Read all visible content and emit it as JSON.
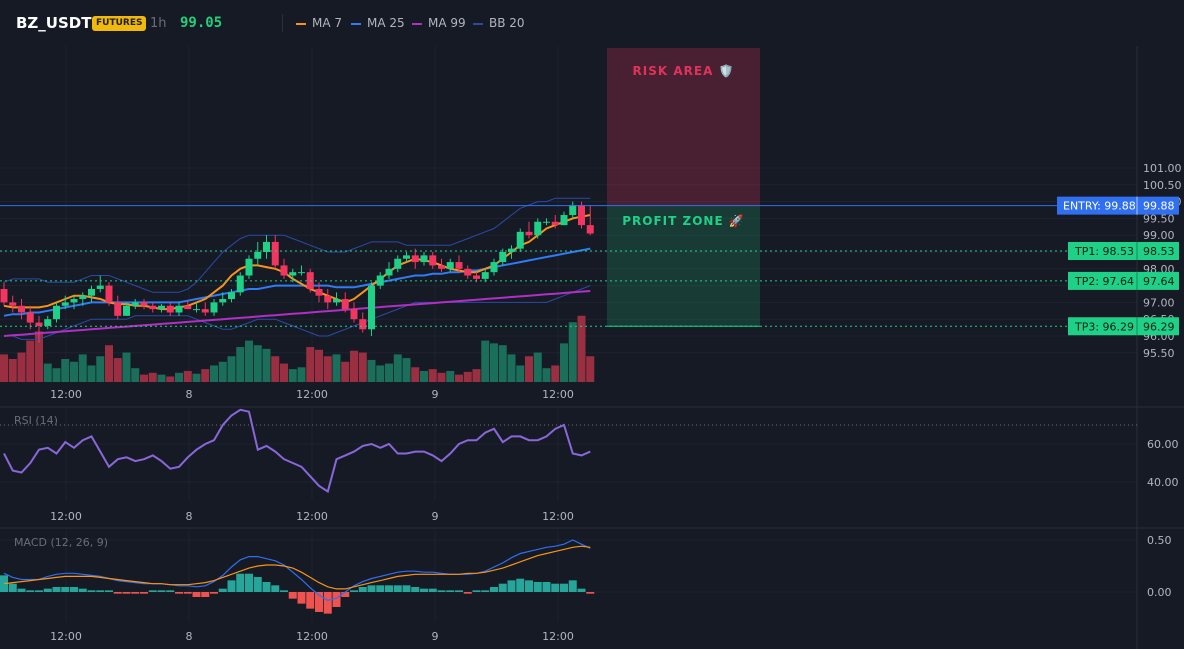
{
  "header": {
    "symbol": "BZ_USDT",
    "badge": "FUTURES",
    "timeframe": "1h",
    "price": "99.05",
    "legend": [
      {
        "label": "MA 7",
        "color": "#f7931a"
      },
      {
        "label": "MA 25",
        "color": "#2f7cf6"
      },
      {
        "label": "MA 99",
        "color": "#b02fc4"
      },
      {
        "label": "BB 20",
        "color": "#2b4aa6"
      }
    ]
  },
  "colors": {
    "up": "#1fd187",
    "down": "#f23660",
    "vol_up": "#1a6e5a",
    "vol_down": "#9a2f42",
    "macd_up": "#26a69a",
    "macd_down": "#ef5350",
    "risk": "#e0325a",
    "profit": "#1fd187",
    "entry": "#2f6ff0",
    "tp": "#1fd187",
    "rsi": "#8a67d9"
  },
  "price_axis": [
    "101.00",
    "100.50",
    "100.00",
    "99.50",
    "99.00",
    "98.50",
    "98.00",
    "97.50",
    "97.00",
    "96.50",
    "96.00",
    "95.50"
  ],
  "time_axis": [
    "12:00",
    "8",
    "12:00",
    "9",
    "12:00"
  ],
  "levels": {
    "entry": {
      "label": "ENTRY: 99.88",
      "value": 99.88,
      "value_label": "99.88"
    },
    "tps": [
      {
        "label": "TP1: 98.53",
        "value": 98.53,
        "value_label": "98.53"
      },
      {
        "label": "TP2: 97.64",
        "value": 97.64,
        "value_label": "97.64"
      },
      {
        "label": "TP3: 96.29",
        "value": 96.29,
        "value_label": "96.29"
      }
    ],
    "risk_label": "RISK AREA 🛡️",
    "profit_label": "PROFIT ZONE 🚀"
  },
  "rsi": {
    "label": "RSI (14)",
    "axis": [
      "60.00",
      "40.00"
    ],
    "overbought": 70
  },
  "macd": {
    "label": "MACD (12, 26, 9)",
    "axis": [
      "0.50",
      "0.00"
    ]
  },
  "chart_data": {
    "type": "candlestick",
    "candles": [
      [
        97.4,
        97.6,
        96.9,
        97.0
      ],
      [
        97.0,
        97.2,
        96.7,
        96.9
      ],
      [
        96.9,
        97.1,
        96.5,
        96.7
      ],
      [
        96.7,
        96.9,
        96.2,
        96.4
      ],
      [
        96.4,
        96.6,
        95.8,
        96.3
      ],
      [
        96.3,
        96.6,
        96.2,
        96.5
      ],
      [
        96.5,
        97.0,
        96.4,
        96.9
      ],
      [
        96.9,
        97.2,
        96.8,
        97.0
      ],
      [
        97.0,
        97.2,
        96.8,
        97.1
      ],
      [
        97.1,
        97.3,
        96.9,
        97.2
      ],
      [
        97.2,
        97.5,
        97.0,
        97.4
      ],
      [
        97.4,
        97.8,
        97.3,
        97.5
      ],
      [
        97.5,
        97.6,
        96.9,
        97.0
      ],
      [
        97.0,
        97.2,
        96.5,
        96.6
      ],
      [
        96.6,
        97.0,
        96.6,
        96.9
      ],
      [
        96.9,
        97.1,
        96.8,
        97.0
      ],
      [
        97.0,
        97.1,
        96.8,
        96.9
      ],
      [
        96.9,
        97.0,
        96.7,
        96.8
      ],
      [
        96.8,
        96.95,
        96.7,
        96.9
      ],
      [
        96.9,
        97.0,
        96.6,
        96.7
      ],
      [
        96.7,
        97.0,
        96.6,
        96.9
      ],
      [
        96.9,
        97.05,
        96.8,
        96.8
      ],
      [
        96.8,
        97.0,
        96.7,
        96.8
      ],
      [
        96.8,
        97.0,
        96.6,
        96.7
      ],
      [
        96.7,
        97.1,
        96.6,
        97.0
      ],
      [
        97.0,
        97.3,
        96.9,
        97.1
      ],
      [
        97.1,
        97.4,
        97.0,
        97.3
      ],
      [
        97.3,
        97.9,
        97.2,
        97.8
      ],
      [
        97.8,
        98.4,
        97.7,
        98.3
      ],
      [
        98.3,
        98.8,
        98.1,
        98.5
      ],
      [
        98.5,
        99.0,
        98.3,
        98.8
      ],
      [
        98.8,
        99.0,
        98.0,
        98.1
      ],
      [
        98.1,
        98.3,
        97.7,
        97.8
      ],
      [
        97.8,
        98.0,
        97.6,
        97.9
      ],
      [
        97.9,
        98.1,
        97.8,
        97.9
      ],
      [
        97.9,
        98.0,
        97.3,
        97.4
      ],
      [
        97.4,
        97.6,
        97.0,
        97.2
      ],
      [
        97.2,
        97.4,
        96.8,
        97.0
      ],
      [
        97.0,
        97.3,
        96.9,
        97.1
      ],
      [
        97.1,
        97.3,
        96.7,
        96.8
      ],
      [
        96.8,
        97.0,
        96.4,
        96.5
      ],
      [
        96.5,
        96.7,
        96.1,
        96.2
      ],
      [
        96.2,
        97.6,
        96.0,
        97.5
      ],
      [
        97.5,
        97.9,
        97.4,
        97.8
      ],
      [
        97.8,
        98.2,
        97.7,
        98.0
      ],
      [
        98.0,
        98.4,
        97.9,
        98.3
      ],
      [
        98.3,
        98.5,
        98.2,
        98.4
      ],
      [
        98.4,
        98.6,
        98.0,
        98.2
      ],
      [
        98.2,
        98.5,
        98.1,
        98.4
      ],
      [
        98.4,
        98.5,
        98.0,
        98.1
      ],
      [
        98.1,
        98.3,
        97.9,
        98.0
      ],
      [
        98.0,
        98.3,
        97.9,
        98.2
      ],
      [
        98.2,
        98.4,
        97.9,
        98.0
      ],
      [
        98.0,
        98.1,
        97.7,
        97.8
      ],
      [
        97.8,
        97.9,
        97.6,
        97.7
      ],
      [
        97.7,
        98.0,
        97.6,
        97.9
      ],
      [
        97.9,
        98.3,
        97.8,
        98.2
      ],
      [
        98.2,
        98.6,
        98.1,
        98.5
      ],
      [
        98.5,
        98.7,
        98.3,
        98.6
      ],
      [
        98.6,
        99.2,
        98.5,
        99.1
      ],
      [
        99.1,
        99.4,
        98.9,
        99.0
      ],
      [
        99.0,
        99.5,
        98.9,
        99.4
      ],
      [
        99.4,
        99.5,
        99.3,
        99.4
      ],
      [
        99.4,
        99.6,
        99.2,
        99.3
      ],
      [
        99.3,
        99.7,
        99.3,
        99.6
      ],
      [
        99.6,
        100.0,
        99.5,
        99.9
      ],
      [
        99.9,
        100.0,
        99.2,
        99.3
      ],
      [
        99.3,
        99.9,
        99.0,
        99.05
      ]
    ],
    "volume": [
      30,
      25,
      32,
      45,
      55,
      20,
      15,
      25,
      22,
      30,
      18,
      28,
      40,
      26,
      32,
      15,
      8,
      10,
      8,
      6,
      10,
      12,
      9,
      14,
      18,
      22,
      28,
      38,
      45,
      40,
      36,
      28,
      20,
      14,
      16,
      38,
      35,
      28,
      30,
      22,
      34,
      32,
      24,
      18,
      20,
      30,
      26,
      16,
      12,
      14,
      10,
      12,
      8,
      11,
      14,
      45,
      42,
      40,
      30,
      18,
      28,
      32,
      15,
      18,
      42,
      65,
      72,
      28
    ],
    "ma7": [
      96.9,
      96.85,
      96.85,
      96.85,
      96.85,
      96.9,
      97.0,
      97.1,
      97.2,
      97.2,
      97.15,
      97.1,
      97.0,
      96.95,
      96.95,
      96.9,
      96.9,
      96.85,
      96.8,
      96.8,
      96.85,
      96.9,
      97.0,
      97.1,
      97.3,
      97.5,
      97.8,
      98.0,
      98.1,
      98.1,
      98.05,
      98.0,
      97.9,
      97.7,
      97.55,
      97.4,
      97.3,
      97.2,
      97.1,
      97.0,
      97.1,
      97.3,
      97.5,
      97.7,
      97.9,
      98.1,
      98.2,
      98.3,
      98.25,
      98.2,
      98.1,
      98.0,
      97.95,
      97.9,
      97.9,
      98.0,
      98.1,
      98.3,
      98.5,
      98.7,
      98.8,
      99.0,
      99.2,
      99.3,
      99.4,
      99.5,
      99.55,
      99.6
    ],
    "ma25": [
      96.6,
      96.65,
      96.65,
      96.7,
      96.7,
      96.75,
      96.8,
      96.85,
      96.9,
      96.95,
      97.0,
      97.0,
      97.0,
      97.0,
      97.0,
      97.0,
      97.0,
      97.0,
      97.0,
      97.0,
      97.0,
      97.05,
      97.1,
      97.15,
      97.2,
      97.25,
      97.3,
      97.35,
      97.4,
      97.4,
      97.45,
      97.5,
      97.5,
      97.5,
      97.5,
      97.5,
      97.5,
      97.5,
      97.45,
      97.45,
      97.45,
      97.5,
      97.55,
      97.6,
      97.65,
      97.7,
      97.75,
      97.8,
      97.8,
      97.85,
      97.85,
      97.9,
      97.9,
      97.95,
      97.95,
      98.0,
      98.05,
      98.1,
      98.15,
      98.2,
      98.25,
      98.3,
      98.35,
      98.4,
      98.45,
      98.5,
      98.55,
      98.6
    ],
    "ma99": [
      96.0,
      96.02,
      96.04,
      96.06,
      96.08,
      96.1,
      96.12,
      96.14,
      96.16,
      96.18,
      96.2,
      96.22,
      96.24,
      96.26,
      96.28,
      96.3,
      96.32,
      96.34,
      96.36,
      96.38,
      96.4,
      96.42,
      96.44,
      96.46,
      96.48,
      96.5,
      96.52,
      96.54,
      96.56,
      96.58,
      96.6,
      96.62,
      96.64,
      96.66,
      96.68,
      96.7,
      96.72,
      96.74,
      96.76,
      96.78,
      96.8,
      96.82,
      96.84,
      96.86,
      96.88,
      96.9,
      96.92,
      96.94,
      96.96,
      96.98,
      97.0,
      97.02,
      97.04,
      97.06,
      97.08,
      97.1,
      97.12,
      97.14,
      97.16,
      97.18,
      97.2,
      97.22,
      97.24,
      97.26,
      97.28,
      97.3,
      97.32,
      97.34
    ],
    "bb_upper": [
      97.6,
      97.7,
      97.7,
      97.7,
      97.7,
      97.6,
      97.6,
      97.6,
      97.6,
      97.7,
      97.8,
      97.8,
      97.8,
      97.7,
      97.6,
      97.5,
      97.4,
      97.3,
      97.3,
      97.3,
      97.3,
      97.4,
      97.6,
      97.9,
      98.2,
      98.5,
      98.7,
      98.9,
      99.0,
      99.0,
      99.0,
      99.0,
      99.0,
      98.9,
      98.8,
      98.7,
      98.6,
      98.5,
      98.5,
      98.5,
      98.6,
      98.7,
      98.8,
      98.8,
      98.8,
      98.8,
      98.7,
      98.7,
      98.7,
      98.7,
      98.7,
      98.7,
      98.8,
      98.9,
      99.0,
      99.1,
      99.2,
      99.4,
      99.6,
      99.8,
      99.9,
      100.0,
      100.0,
      100.1,
      100.1,
      100.1,
      100.1,
      100.1
    ],
    "bb_lower": [
      96.0,
      96.0,
      95.9,
      95.9,
      95.9,
      96.0,
      96.1,
      96.2,
      96.3,
      96.4,
      96.5,
      96.5,
      96.5,
      96.5,
      96.5,
      96.6,
      96.6,
      96.6,
      96.6,
      96.6,
      96.6,
      96.6,
      96.5,
      96.4,
      96.3,
      96.2,
      96.2,
      96.3,
      96.4,
      96.5,
      96.5,
      96.5,
      96.4,
      96.3,
      96.2,
      96.1,
      96.0,
      96.0,
      96.1,
      96.2,
      96.3,
      96.4,
      96.5,
      96.6,
      96.7,
      96.8,
      96.9,
      97.0,
      97.0,
      97.0,
      97.0,
      97.0,
      97.0,
      97.0,
      97.0,
      97.0,
      97.0,
      97.0,
      97.0,
      97.0,
      97.0,
      97.0,
      97.0,
      97.1,
      97.2,
      97.3,
      97.4,
      97.5
    ],
    "rsi": [
      55,
      46,
      45,
      50,
      57,
      58,
      55,
      61,
      58,
      62,
      64,
      56,
      48,
      52,
      53,
      51,
      52,
      54,
      51,
      47,
      48,
      53,
      57,
      60,
      62,
      70,
      75,
      78,
      77,
      57,
      59,
      56,
      52,
      50,
      48,
      43,
      38,
      35,
      52,
      54,
      56,
      59,
      60,
      58,
      60,
      55,
      55,
      56,
      56,
      54,
      51,
      55,
      60,
      62,
      62,
      66,
      68,
      61,
      64,
      64,
      62,
      62,
      64,
      68,
      70,
      55,
      54,
      56
    ],
    "macd": [
      0.18,
      0.14,
      0.12,
      0.12,
      0.12,
      0.15,
      0.17,
      0.18,
      0.18,
      0.17,
      0.16,
      0.15,
      0.13,
      0.11,
      0.1,
      0.09,
      0.08,
      0.08,
      0.08,
      0.07,
      0.06,
      0.06,
      0.05,
      0.06,
      0.1,
      0.16,
      0.24,
      0.31,
      0.34,
      0.34,
      0.32,
      0.3,
      0.26,
      0.19,
      0.12,
      0.04,
      -0.03,
      -0.08,
      -0.06,
      0.0,
      0.06,
      0.1,
      0.13,
      0.15,
      0.17,
      0.19,
      0.2,
      0.2,
      0.19,
      0.19,
      0.18,
      0.17,
      0.17,
      0.17,
      0.18,
      0.2,
      0.24,
      0.28,
      0.33,
      0.37,
      0.39,
      0.41,
      0.43,
      0.44,
      0.46,
      0.5,
      0.46,
      0.42
    ],
    "signal": [
      0.08,
      0.09,
      0.1,
      0.11,
      0.12,
      0.13,
      0.14,
      0.15,
      0.15,
      0.15,
      0.15,
      0.14,
      0.13,
      0.12,
      0.11,
      0.1,
      0.09,
      0.08,
      0.08,
      0.07,
      0.07,
      0.07,
      0.08,
      0.09,
      0.11,
      0.14,
      0.17,
      0.2,
      0.23,
      0.25,
      0.26,
      0.26,
      0.25,
      0.23,
      0.19,
      0.14,
      0.09,
      0.05,
      0.03,
      0.03,
      0.05,
      0.07,
      0.09,
      0.11,
      0.13,
      0.15,
      0.16,
      0.17,
      0.17,
      0.17,
      0.17,
      0.17,
      0.17,
      0.18,
      0.18,
      0.19,
      0.21,
      0.23,
      0.26,
      0.29,
      0.32,
      0.35,
      0.37,
      0.39,
      0.41,
      0.43,
      0.44,
      0.43
    ]
  }
}
